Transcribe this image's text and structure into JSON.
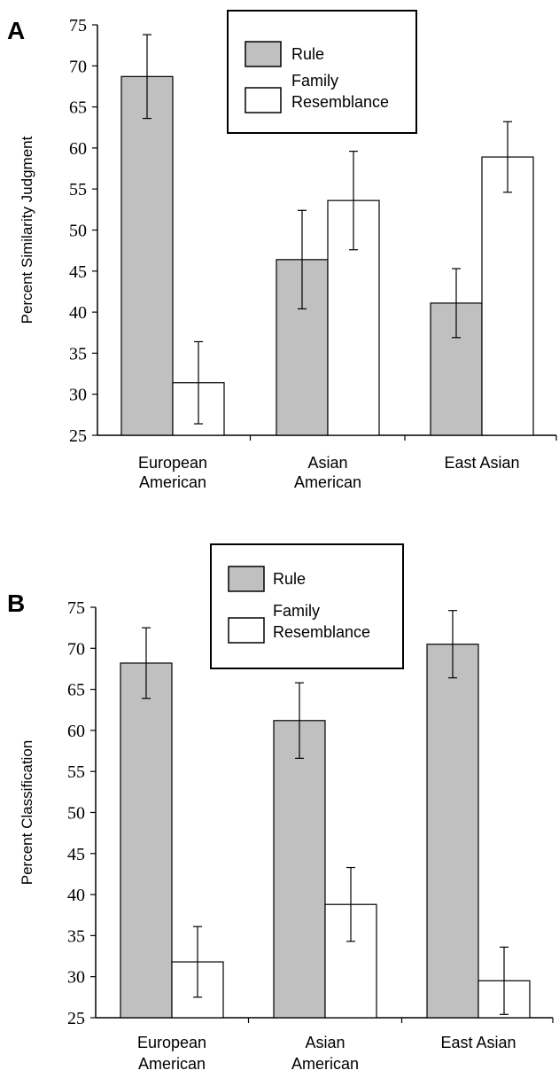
{
  "colors": {
    "rule": "#c0c0c0",
    "family_resemblance": "#ffffff",
    "stroke": "#000000"
  },
  "chart_data": [
    {
      "panel": "A",
      "type": "bar",
      "ylabel": "Percent Similarity Judgment",
      "ylim": [
        25,
        75
      ],
      "yticks": [
        "25",
        "30",
        "35",
        "40",
        "45",
        "50",
        "55",
        "60",
        "65",
        "70",
        "75"
      ],
      "categories": [
        [
          "European",
          "American"
        ],
        [
          "Asian",
          "American"
        ],
        [
          "East Asian"
        ]
      ],
      "legend": {
        "placement": "top-center",
        "items": [
          [
            "Rule"
          ],
          [
            "Family",
            "Resemblance"
          ]
        ]
      },
      "series": [
        {
          "name": "Rule",
          "values": [
            68.7,
            46.4,
            41.1
          ],
          "errors": [
            5.1,
            6.0,
            4.2
          ]
        },
        {
          "name": "Family Resemblance",
          "values": [
            31.4,
            53.6,
            58.9
          ],
          "errors": [
            5.0,
            6.0,
            4.3
          ]
        }
      ]
    },
    {
      "panel": "B",
      "type": "bar",
      "ylabel": "Percent Classification",
      "ylim": [
        25,
        75
      ],
      "yticks": [
        "25",
        "30",
        "35",
        "40",
        "45",
        "50",
        "55",
        "60",
        "65",
        "70",
        "75"
      ],
      "categories": [
        [
          "European",
          "American"
        ],
        [
          "Asian",
          "American"
        ],
        [
          "East Asian"
        ]
      ],
      "legend": {
        "placement": "top-center",
        "items": [
          [
            "Rule"
          ],
          [
            "Family",
            "Resemblance"
          ]
        ]
      },
      "series": [
        {
          "name": "Rule",
          "values": [
            68.2,
            61.2,
            70.5
          ],
          "errors": [
            4.3,
            4.6,
            4.1
          ]
        },
        {
          "name": "Family Resemblance",
          "values": [
            31.8,
            38.8,
            29.5
          ],
          "errors": [
            4.3,
            4.5,
            4.1
          ]
        }
      ]
    }
  ]
}
